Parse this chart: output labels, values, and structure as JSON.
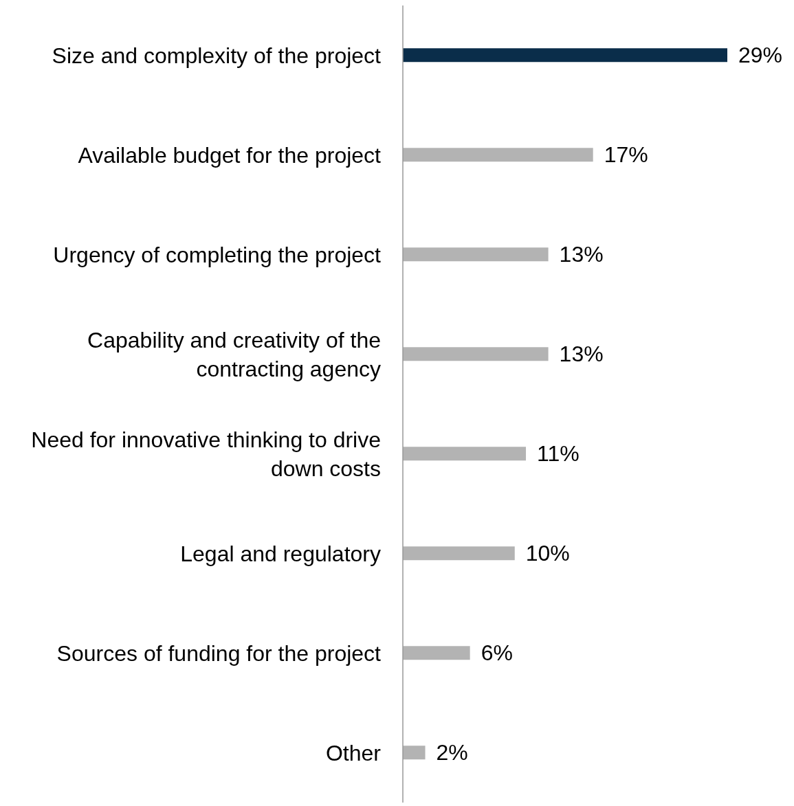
{
  "chart_data": {
    "type": "bar",
    "orientation": "horizontal",
    "categories": [
      "Size and complexity of the project",
      "Available budget for the project",
      "Urgency of completing the project",
      "Capability and creativity of the contracting agency",
      "Need for innovative thinking to drive down costs",
      "Legal and regulatory",
      "Sources of funding for the project",
      "Other"
    ],
    "values": [
      29,
      17,
      13,
      13,
      11,
      10,
      6,
      2
    ],
    "value_labels": [
      "29%",
      "17%",
      "13%",
      "13%",
      "11%",
      "10%",
      "6%",
      "2%"
    ],
    "colors": [
      "#0a2d4a",
      "#b3b3b3",
      "#b3b3b3",
      "#b3b3b3",
      "#b3b3b3",
      "#b3b3b3",
      "#b3b3b3",
      "#b3b3b3"
    ],
    "grid": false,
    "legend": false
  }
}
